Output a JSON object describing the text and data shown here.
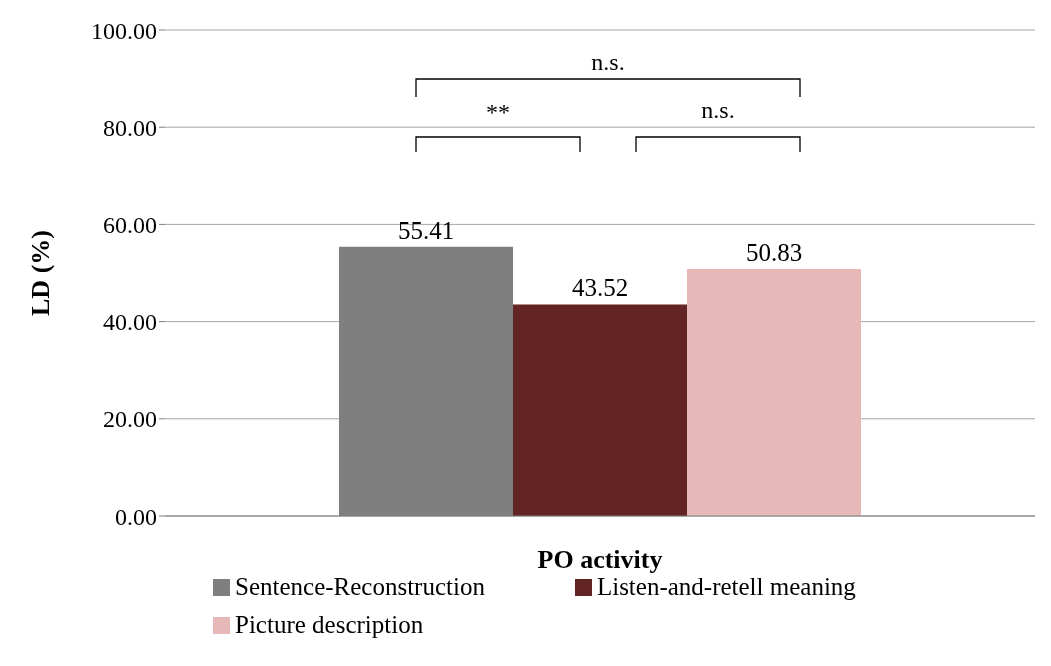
{
  "chart_data": {
    "type": "bar",
    "xlabel": "PO activity",
    "ylabel": "LD (%)",
    "categories": [
      null
    ],
    "series": [
      {
        "name": "Sentence-Reconstruction",
        "color": "#7f7f7f",
        "values": [
          55.41
        ]
      },
      {
        "name": "Listen-and-retell meaning",
        "color": "#632523",
        "values": [
          43.52
        ]
      },
      {
        "name": "Picture description",
        "color": "#e6b9b8",
        "values": [
          50.83
        ]
      }
    ],
    "ylim": [
      0,
      100
    ],
    "yticks": [
      {
        "value": 0,
        "label": "0.00"
      },
      {
        "value": 20,
        "label": "20.00"
      },
      {
        "value": 40,
        "label": "40.00"
      },
      {
        "value": 60,
        "label": "60.00"
      },
      {
        "value": 80,
        "label": "80.00"
      },
      {
        "value": 100,
        "label": "100.00"
      }
    ],
    "grid": "y",
    "legend": "bottom",
    "data_labels": true,
    "annotations": [
      "**",
      "n.s.",
      "n.s."
    ]
  }
}
